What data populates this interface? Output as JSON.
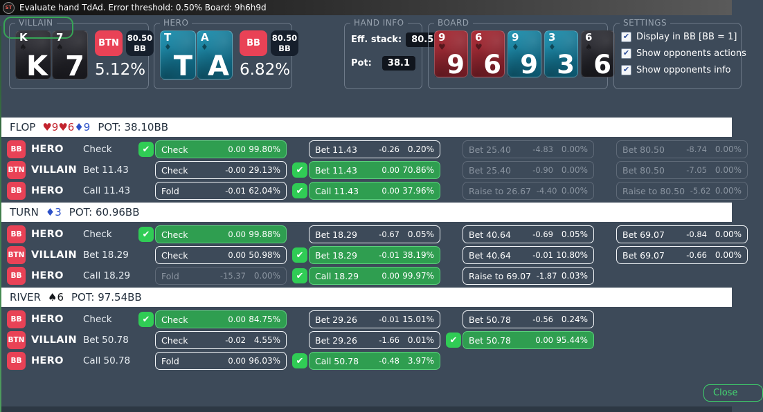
{
  "window": {
    "title": "Evaluate hand TdAd. Error threshold: 0.50% Board: 9h6h9d",
    "logo": "ST"
  },
  "panels": {
    "villain": {
      "legend": "VILLAIN",
      "cards": [
        {
          "rank": "K",
          "suit": "♠",
          "color": "dark"
        },
        {
          "rank": "7",
          "suit": "♠",
          "color": "dark"
        }
      ],
      "position": "BTN",
      "stack": "80.50\nBB",
      "percent": "5.12%"
    },
    "hero": {
      "legend": "HERO",
      "cards": [
        {
          "rank": "T",
          "suit": "♦",
          "color": "blue"
        },
        {
          "rank": "A",
          "suit": "♦",
          "color": "blue"
        }
      ],
      "position": "BB",
      "stack": "80.50\nBB",
      "percent": "6.82%"
    },
    "hand_info": {
      "legend": "HAND INFO",
      "eff_stack_label": "Eff. stack:",
      "eff_stack_value": "80.5",
      "pot_label": "Pot:",
      "pot_value": "38.1"
    },
    "board": {
      "legend": "BOARD",
      "cards": [
        {
          "rank": "9",
          "suit": "♥",
          "color": "red"
        },
        {
          "rank": "6",
          "suit": "♥",
          "color": "red"
        },
        {
          "rank": "9",
          "suit": "♦",
          "color": "blue"
        },
        {
          "rank": "3",
          "suit": "♦",
          "color": "blue"
        },
        {
          "rank": "6",
          "suit": "♠",
          "color": "dark"
        }
      ]
    },
    "settings": {
      "legend": "SETTINGS",
      "options": [
        {
          "label": "Display in BB [BB = 1]",
          "checked": true
        },
        {
          "label": "Show opponents actions",
          "checked": true
        },
        {
          "label": "Show opponents info",
          "checked": true
        }
      ]
    }
  },
  "streets": [
    {
      "name": "FLOP",
      "cards": [
        {
          "text": "♥9",
          "color": "red"
        },
        {
          "text": "♥6",
          "color": "red"
        },
        {
          "text": "♦9",
          "color": "blue"
        }
      ],
      "pot": "POT: 38.10BB",
      "rows": [
        {
          "badge": "BB",
          "player": "HERO",
          "action": "Check",
          "options": [
            {
              "label": "Check",
              "ev": "0.00",
              "pct": "99.80%",
              "state": "selected"
            },
            {
              "label": "Bet 11.43",
              "ev": "-0.26",
              "pct": "0.20%",
              "state": "normal"
            },
            {
              "label": "Bet 25.40",
              "ev": "-4.83",
              "pct": "0.00%",
              "state": "disabled"
            },
            {
              "label": "Bet 80.50",
              "ev": "-8.74",
              "pct": "0.00%",
              "state": "disabled"
            }
          ]
        },
        {
          "badge": "BTN",
          "player": "VILLAIN",
          "action": "Bet 11.43",
          "options": [
            {
              "label": "Check",
              "ev": "-0.00",
              "pct": "29.13%",
              "state": "normal"
            },
            {
              "label": "Bet 11.43",
              "ev": "0.00",
              "pct": "70.86%",
              "state": "selected"
            },
            {
              "label": "Bet 25.40",
              "ev": "-0.90",
              "pct": "0.00%",
              "state": "disabled"
            },
            {
              "label": "Bet 80.50",
              "ev": "-7.05",
              "pct": "0.00%",
              "state": "disabled"
            }
          ]
        },
        {
          "badge": "BB",
          "player": "HERO",
          "action": "Call 11.43",
          "options": [
            {
              "label": "Fold",
              "ev": "-0.01",
              "pct": "62.04%",
              "state": "normal"
            },
            {
              "label": "Call 11.43",
              "ev": "0.00",
              "pct": "37.96%",
              "state": "selected"
            },
            {
              "label": "Raise to 26.67",
              "ev": "-4.40",
              "pct": "0.00%",
              "state": "disabled"
            },
            {
              "label": "Raise to 80.50",
              "ev": "-5.62",
              "pct": "0.00%",
              "state": "disabled"
            }
          ]
        }
      ]
    },
    {
      "name": "TURN",
      "cards": [
        {
          "text": "♦3",
          "color": "blue"
        }
      ],
      "pot": "POT: 60.96BB",
      "rows": [
        {
          "badge": "BB",
          "player": "HERO",
          "action": "Check",
          "options": [
            {
              "label": "Check",
              "ev": "0.00",
              "pct": "99.88%",
              "state": "selected"
            },
            {
              "label": "Bet 18.29",
              "ev": "-0.67",
              "pct": "0.05%",
              "state": "normal"
            },
            {
              "label": "Bet 40.64",
              "ev": "-0.69",
              "pct": "0.05%",
              "state": "normal"
            },
            {
              "label": "Bet 69.07",
              "ev": "-0.84",
              "pct": "0.00%",
              "state": "normal"
            }
          ]
        },
        {
          "badge": "BTN",
          "player": "VILLAIN",
          "action": "Bet 18.29",
          "options": [
            {
              "label": "Check",
              "ev": "0.00",
              "pct": "50.98%",
              "state": "normal"
            },
            {
              "label": "Bet 18.29",
              "ev": "-0.01",
              "pct": "38.19%",
              "state": "selected"
            },
            {
              "label": "Bet 40.64",
              "ev": "-0.01",
              "pct": "10.80%",
              "state": "normal"
            },
            {
              "label": "Bet 69.07",
              "ev": "-0.66",
              "pct": "0.00%",
              "state": "normal"
            }
          ]
        },
        {
          "badge": "BB",
          "player": "HERO",
          "action": "Call 18.29",
          "options": [
            {
              "label": "Fold",
              "ev": "-15.37",
              "pct": "0.00%",
              "state": "disabled"
            },
            {
              "label": "Call 18.29",
              "ev": "0.00",
              "pct": "99.97%",
              "state": "selected"
            },
            {
              "label": "Raise to 69.07",
              "ev": "-1.87",
              "pct": "0.03%",
              "state": "normal"
            },
            null
          ]
        }
      ]
    },
    {
      "name": "RIVER",
      "cards": [
        {
          "text": "♠6",
          "color": "black"
        }
      ],
      "pot": "POT: 97.54BB",
      "rows": [
        {
          "badge": "BB",
          "player": "HERO",
          "action": "Check",
          "options": [
            {
              "label": "Check",
              "ev": "0.00",
              "pct": "84.75%",
              "state": "selected"
            },
            {
              "label": "Bet 29.26",
              "ev": "-0.01",
              "pct": "15.01%",
              "state": "normal"
            },
            {
              "label": "Bet 50.78",
              "ev": "-0.56",
              "pct": "0.24%",
              "state": "normal"
            },
            null
          ]
        },
        {
          "badge": "BTN",
          "player": "VILLAIN",
          "action": "Bet 50.78",
          "options": [
            {
              "label": "Check",
              "ev": "-0.02",
              "pct": "4.55%",
              "state": "normal"
            },
            {
              "label": "Bet 29.26",
              "ev": "-1.66",
              "pct": "0.01%",
              "state": "normal"
            },
            {
              "label": "Bet 50.78",
              "ev": "0.00",
              "pct": "95.44%",
              "state": "selected"
            },
            null
          ]
        },
        {
          "badge": "BB",
          "player": "HERO",
          "action": "Call 50.78",
          "options": [
            {
              "label": "Fold",
              "ev": "0.00",
              "pct": "96.03%",
              "state": "normal"
            },
            {
              "label": "Call 50.78",
              "ev": "-0.48",
              "pct": "3.97%",
              "state": "selected"
            },
            null,
            null
          ]
        }
      ]
    }
  ],
  "footer": {
    "close_label": "Close"
  },
  "colors": {
    "background": "#3d4a59",
    "badge_red": "#e94256",
    "selected_green": "#2f9e50",
    "check_icon_green": "#30cc55",
    "close_green": "#3ecf6b"
  }
}
